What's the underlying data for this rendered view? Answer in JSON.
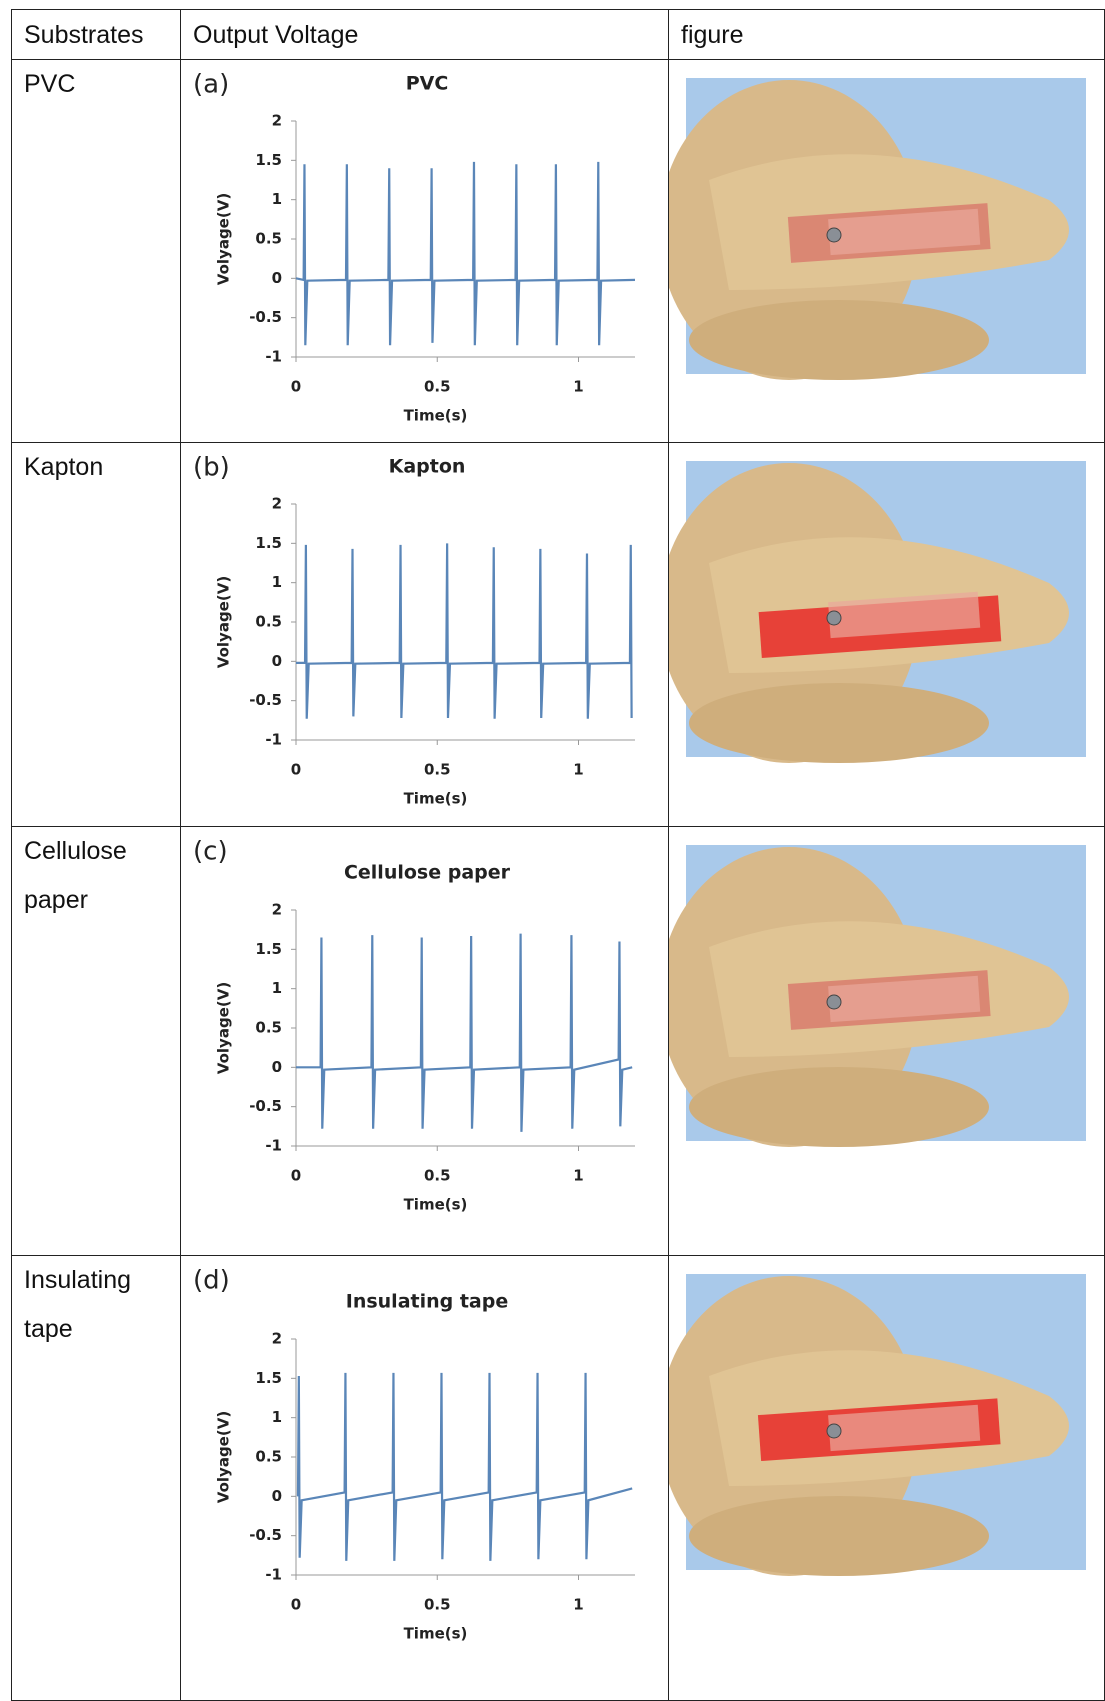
{
  "table": {
    "header": [
      "Substrates",
      "Output Voltage",
      "figure"
    ],
    "rows": [
      {
        "substrate": "PVC",
        "chart": {
          "type": "line",
          "panel": "(a)",
          "title": "PVC",
          "xlabel": "Time(s)",
          "ylabel": "Volyage(V)",
          "color": "#5a86b8",
          "xlim": [
            0,
            1.2
          ],
          "ylim": [
            -1,
            2
          ],
          "xticks": [
            0,
            0.5,
            1
          ],
          "yticks": [
            -1,
            -0.5,
            0,
            0.5,
            1,
            1.5,
            2
          ],
          "x": [
            0,
            0.027,
            0.03,
            0.033,
            0.04,
            0.177,
            0.18,
            0.183,
            0.19,
            0.327,
            0.33,
            0.333,
            0.34,
            0.477,
            0.48,
            0.483,
            0.49,
            0.627,
            0.63,
            0.633,
            0.64,
            0.777,
            0.78,
            0.783,
            0.79,
            0.917,
            0.92,
            0.923,
            0.93,
            1.067,
            1.07,
            1.073,
            1.08,
            1.2
          ],
          "values": [
            0,
            -0.02,
            1.45,
            -0.85,
            -0.03,
            -0.02,
            1.45,
            -0.85,
            -0.03,
            -0.02,
            1.4,
            -0.85,
            -0.03,
            -0.02,
            1.4,
            -0.82,
            -0.03,
            -0.02,
            1.48,
            -0.85,
            -0.03,
            -0.02,
            1.45,
            -0.85,
            -0.03,
            -0.02,
            1.45,
            -0.85,
            -0.03,
            -0.02,
            1.48,
            -0.85,
            -0.03,
            -0.02
          ]
        }
      },
      {
        "substrate": "Kapton",
        "chart": {
          "type": "line",
          "panel": "(b)",
          "title": "Kapton",
          "xlabel": "Time(s)",
          "ylabel": "Volyage(V)",
          "color": "#5a86b8",
          "xlim": [
            0,
            1.2
          ],
          "ylim": [
            -1,
            2
          ],
          "xticks": [
            0,
            0.5,
            1
          ],
          "yticks": [
            -1,
            -0.5,
            0,
            0.5,
            1,
            1.5,
            2
          ],
          "x": [
            0,
            0.032,
            0.035,
            0.038,
            0.045,
            0.197,
            0.2,
            0.203,
            0.21,
            0.367,
            0.37,
            0.373,
            0.38,
            0.532,
            0.535,
            0.538,
            0.545,
            0.697,
            0.7,
            0.703,
            0.71,
            0.862,
            0.865,
            0.868,
            0.875,
            1.027,
            1.03,
            1.033,
            1.04,
            1.182,
            1.185,
            1.188
          ],
          "values": [
            -0.02,
            -0.02,
            1.48,
            -0.73,
            -0.03,
            -0.02,
            1.43,
            -0.7,
            -0.03,
            -0.02,
            1.48,
            -0.72,
            -0.03,
            -0.02,
            1.5,
            -0.72,
            -0.03,
            -0.02,
            1.45,
            -0.73,
            -0.03,
            -0.02,
            1.43,
            -0.72,
            -0.03,
            -0.02,
            1.37,
            -0.73,
            -0.03,
            -0.02,
            1.48,
            -0.72
          ]
        }
      },
      {
        "substrate": "Cellulose paper",
        "chart": {
          "type": "line",
          "panel": "(c)",
          "title": "Cellulose paper",
          "xlabel": "Time(s)",
          "ylabel": "Volyage(V)",
          "color": "#5a86b8",
          "xlim": [
            0,
            1.2
          ],
          "ylim": [
            -1,
            2
          ],
          "xticks": [
            0,
            0.5,
            1
          ],
          "yticks": [
            -1,
            -0.5,
            0,
            0.5,
            1,
            1.5,
            2
          ],
          "x": [
            0,
            0.087,
            0.09,
            0.093,
            0.1,
            0.267,
            0.27,
            0.273,
            0.28,
            0.442,
            0.445,
            0.448,
            0.455,
            0.617,
            0.62,
            0.623,
            0.63,
            0.792,
            0.795,
            0.798,
            0.805,
            0.972,
            0.975,
            0.978,
            0.985,
            1.142,
            1.145,
            1.148,
            1.155,
            1.19
          ],
          "values": [
            0,
            0,
            1.65,
            -0.78,
            -0.03,
            0,
            1.68,
            -0.78,
            -0.03,
            0,
            1.65,
            -0.78,
            -0.03,
            0,
            1.67,
            -0.78,
            -0.03,
            0,
            1.7,
            -0.82,
            -0.03,
            0,
            1.68,
            -0.78,
            -0.03,
            0.1,
            1.6,
            -0.75,
            -0.03,
            0
          ]
        }
      },
      {
        "substrate": "Insulating tape",
        "chart": {
          "type": "line",
          "panel": "(d)",
          "title": "Insulating tape",
          "xlabel": "Time(s)",
          "ylabel": "Volyage(V)",
          "color": "#5a86b8",
          "xlim": [
            0,
            1.2
          ],
          "ylim": [
            -1,
            2
          ],
          "xticks": [
            0,
            0.5,
            1
          ],
          "yticks": [
            -1,
            -0.5,
            0,
            0.5,
            1,
            1.5,
            2
          ],
          "x": [
            0.007,
            0.01,
            0.013,
            0.02,
            0.172,
            0.175,
            0.178,
            0.185,
            0.342,
            0.345,
            0.348,
            0.355,
            0.512,
            0.515,
            0.518,
            0.525,
            0.682,
            0.685,
            0.688,
            0.695,
            0.852,
            0.855,
            0.858,
            0.865,
            1.022,
            1.025,
            1.028,
            1.035,
            1.19
          ],
          "values": [
            0,
            1.53,
            -0.78,
            -0.05,
            0.05,
            1.57,
            -0.82,
            -0.05,
            0.05,
            1.57,
            -0.82,
            -0.05,
            0.05,
            1.57,
            -0.8,
            -0.05,
            0.05,
            1.57,
            -0.82,
            -0.05,
            0.05,
            1.57,
            -0.8,
            -0.05,
            0.05,
            1.57,
            -0.8,
            -0.05,
            0.1
          ]
        }
      }
    ]
  }
}
